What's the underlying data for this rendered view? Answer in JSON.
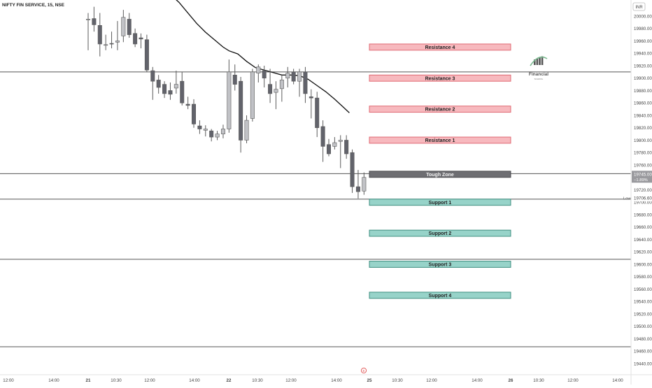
{
  "header": {
    "symbol_label": "NIFTY FIN SERVICE, 15, NSE"
  },
  "currency": "INR",
  "logo": {
    "text": "Financial",
    "subtext": "SCHOOL"
  },
  "colors": {
    "bear": "#62636b",
    "bull": "#c1c2c6",
    "wick": "#5b5b5b",
    "ma": "#111111",
    "resistance_fill": "#f7b9be",
    "resistance_border": "#e06973",
    "support_fill": "#97d3c9",
    "support_border": "#3f8f80",
    "tough_fill": "#6e6e72",
    "price_badge": "#9a9a9e",
    "grid_line": "#555555",
    "axis_text": "#444444",
    "logo_green": "#7ab98f"
  },
  "chart_data": {
    "type": "candlestick",
    "title": "NIFTY FIN SERVICE, 15, NSE",
    "ylim": [
      19430,
      20010
    ],
    "yticks": [
      20000,
      19980,
      19960,
      19940,
      19920,
      19900,
      19880,
      19860,
      19840,
      19820,
      19800,
      19780,
      19760,
      19740,
      19720,
      19700,
      19680,
      19660,
      19640,
      19620,
      19600,
      19580,
      19560,
      19540,
      19520,
      19500,
      19480,
      19460,
      19440
    ],
    "xticks": [
      "12:00",
      "14:00",
      "21",
      "10:30",
      "12:00",
      "14:00",
      "22",
      "10:30",
      "12:00",
      "14:00",
      "25",
      "10:30",
      "12:00",
      "14:00",
      "26",
      "10:30",
      "12:00",
      "14:00"
    ],
    "candles": [
      {
        "o": 19995,
        "h": 20005,
        "l": 19945,
        "c": 19995
      },
      {
        "o": 19996,
        "h": 20015,
        "l": 19975,
        "c": 19986
      },
      {
        "o": 19985,
        "h": 20005,
        "l": 19935,
        "c": 19955
      },
      {
        "o": 19954,
        "h": 19970,
        "l": 19945,
        "c": 19954
      },
      {
        "o": 19956,
        "h": 19975,
        "l": 19948,
        "c": 19955
      },
      {
        "o": 19958,
        "h": 19992,
        "l": 19945,
        "c": 19960
      },
      {
        "o": 19968,
        "h": 20010,
        "l": 19958,
        "c": 19998
      },
      {
        "o": 19995,
        "h": 20005,
        "l": 19965,
        "c": 19970
      },
      {
        "o": 19972,
        "h": 19980,
        "l": 19950,
        "c": 19955
      },
      {
        "o": 19965,
        "h": 19972,
        "l": 19948,
        "c": 19963
      },
      {
        "o": 19962,
        "h": 19970,
        "l": 19910,
        "c": 19913
      },
      {
        "o": 19912,
        "h": 19918,
        "l": 19865,
        "c": 19895
      },
      {
        "o": 19897,
        "h": 19905,
        "l": 19875,
        "c": 19885
      },
      {
        "o": 19890,
        "h": 19895,
        "l": 19868,
        "c": 19875
      },
      {
        "o": 19880,
        "h": 19893,
        "l": 19865,
        "c": 19874
      },
      {
        "o": 19884,
        "h": 19912,
        "l": 19875,
        "c": 19890
      },
      {
        "o": 19895,
        "h": 19910,
        "l": 19856,
        "c": 19860
      },
      {
        "o": 19858,
        "h": 19870,
        "l": 19850,
        "c": 19856
      },
      {
        "o": 19858,
        "h": 19866,
        "l": 19820,
        "c": 19826
      },
      {
        "o": 19823,
        "h": 19832,
        "l": 19810,
        "c": 19818
      },
      {
        "o": 19816,
        "h": 19824,
        "l": 19806,
        "c": 19818
      },
      {
        "o": 19815,
        "h": 19818,
        "l": 19798,
        "c": 19805
      },
      {
        "o": 19805,
        "h": 19815,
        "l": 19800,
        "c": 19810
      },
      {
        "o": 19810,
        "h": 19825,
        "l": 19803,
        "c": 19818
      },
      {
        "o": 19818,
        "h": 19930,
        "l": 19812,
        "c": 19910
      },
      {
        "o": 19905,
        "h": 19922,
        "l": 19880,
        "c": 19890
      },
      {
        "o": 19895,
        "h": 19902,
        "l": 19780,
        "c": 19800
      },
      {
        "o": 19800,
        "h": 19840,
        "l": 19795,
        "c": 19832
      },
      {
        "o": 19835,
        "h": 19915,
        "l": 19830,
        "c": 19910
      },
      {
        "o": 19908,
        "h": 19922,
        "l": 19893,
        "c": 19918
      },
      {
        "o": 19912,
        "h": 19920,
        "l": 19885,
        "c": 19900
      },
      {
        "o": 19890,
        "h": 19915,
        "l": 19860,
        "c": 19875
      },
      {
        "o": 19877,
        "h": 19895,
        "l": 19850,
        "c": 19882
      },
      {
        "o": 19883,
        "h": 19905,
        "l": 19862,
        "c": 19897
      },
      {
        "o": 19900,
        "h": 19918,
        "l": 19885,
        "c": 19908
      },
      {
        "o": 19910,
        "h": 19915,
        "l": 19890,
        "c": 19895
      },
      {
        "o": 19895,
        "h": 19915,
        "l": 19870,
        "c": 19910
      },
      {
        "o": 19910,
        "h": 19918,
        "l": 19860,
        "c": 19875
      },
      {
        "o": 19870,
        "h": 19882,
        "l": 19835,
        "c": 19868
      },
      {
        "o": 19868,
        "h": 19878,
        "l": 19805,
        "c": 19820
      },
      {
        "o": 19822,
        "h": 19832,
        "l": 19765,
        "c": 19790
      },
      {
        "o": 19793,
        "h": 19802,
        "l": 19774,
        "c": 19778
      },
      {
        "o": 19790,
        "h": 19805,
        "l": 19785,
        "c": 19796
      },
      {
        "o": 19798,
        "h": 19808,
        "l": 19755,
        "c": 19800
      },
      {
        "o": 19800,
        "h": 19808,
        "l": 19770,
        "c": 19778
      },
      {
        "o": 19780,
        "h": 19785,
        "l": 19715,
        "c": 19725
      },
      {
        "o": 19725,
        "h": 19752,
        "l": 19706,
        "c": 19717
      },
      {
        "o": 19718,
        "h": 19748,
        "l": 19712,
        "c": 19740
      }
    ],
    "moving_average": [
      {
        "i": 14,
        "v": 20035
      },
      {
        "i": 15.5,
        "v": 20022
      },
      {
        "i": 17,
        "v": 20005
      },
      {
        "i": 18.5,
        "v": 19988
      },
      {
        "i": 20,
        "v": 19974
      },
      {
        "i": 21.5,
        "v": 19962
      },
      {
        "i": 23,
        "v": 19950
      },
      {
        "i": 24,
        "v": 19944
      },
      {
        "i": 25.5,
        "v": 19939
      },
      {
        "i": 27,
        "v": 19927
      },
      {
        "i": 28.5,
        "v": 19917
      },
      {
        "i": 30,
        "v": 19913
      },
      {
        "i": 31.5,
        "v": 19909
      },
      {
        "i": 33,
        "v": 19905
      },
      {
        "i": 34.5,
        "v": 19905
      },
      {
        "i": 36,
        "v": 19904
      },
      {
        "i": 37.5,
        "v": 19898
      },
      {
        "i": 39,
        "v": 19888
      },
      {
        "i": 40.5,
        "v": 19878
      },
      {
        "i": 42,
        "v": 19866
      },
      {
        "i": 43.5,
        "v": 19853
      },
      {
        "i": 44.5,
        "v": 19844
      }
    ],
    "hlines": [
      19910,
      19746,
      19705,
      19608,
      19467
    ],
    "zones": [
      {
        "label": "Resistance 4",
        "kind": "resistance",
        "low": 19945,
        "high": 19955
      },
      {
        "label": "Resistance 3",
        "kind": "resistance",
        "low": 19895,
        "high": 19905
      },
      {
        "label": "Resistance 2",
        "kind": "resistance",
        "low": 19845,
        "high": 19855
      },
      {
        "label": "Resistance 1",
        "kind": "resistance",
        "low": 19795,
        "high": 19805
      },
      {
        "label": "Tough Zone",
        "kind": "tough",
        "low": 19740,
        "high": 19750
      },
      {
        "label": "Support 1",
        "kind": "support",
        "low": 19695,
        "high": 19705
      },
      {
        "label": "Support 2",
        "kind": "support",
        "low": 19645,
        "high": 19655
      },
      {
        "label": "Support 3",
        "kind": "support",
        "low": 19595,
        "high": 19605
      },
      {
        "label": "Support 4",
        "kind": "support",
        "low": 19545,
        "high": 19555
      }
    ],
    "current_price": {
      "value": "19745.00",
      "change": "−1.89%",
      "at": 19745
    },
    "low_marker": {
      "label": "Low",
      "value": "19706.60",
      "at": 19706.6
    },
    "event_marker": {
      "label": "E",
      "x_tick_index": 10
    }
  }
}
